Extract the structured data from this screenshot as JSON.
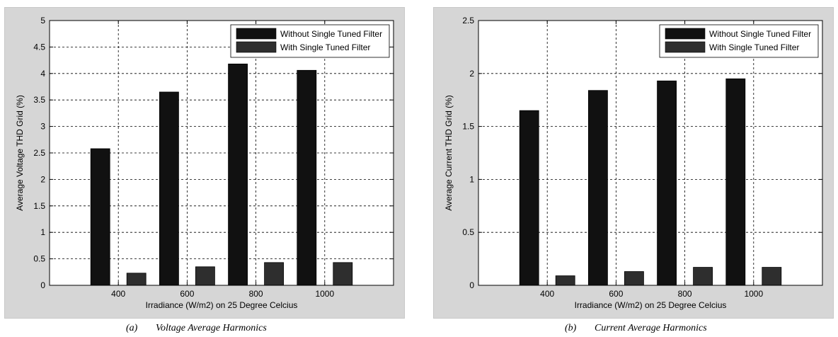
{
  "captions": [
    {
      "label": "(a)",
      "text": "Voltage Average Harmonics"
    },
    {
      "label": "(b)",
      "text": "Current Average Harmonics"
    }
  ],
  "colors": {
    "without": "#111111",
    "with": "#2e2e2e",
    "panel_bg": "#d6d6d6",
    "plot_bg": "#ffffff"
  },
  "chart_data": [
    {
      "type": "bar",
      "title": "",
      "xlabel": "Irradiance (W/m2) on 25 Degree Celcius",
      "ylabel": "Average Voltage THD Grid (%)",
      "categories": [
        "400",
        "600",
        "800",
        "1000"
      ],
      "ylim": [
        0,
        5
      ],
      "yticks": [
        0,
        0.5,
        1,
        1.5,
        2,
        2.5,
        3,
        3.5,
        4,
        4.5,
        5
      ],
      "ytick_labels": [
        "0",
        "0.5",
        "1",
        "1.5",
        "2",
        "2.5",
        "3",
        "3.5",
        "4",
        "4.5",
        "5"
      ],
      "grid": true,
      "legend": "top-right",
      "series": [
        {
          "name": "Without Single Tuned Filter",
          "values": [
            2.58,
            3.65,
            4.18,
            4.06
          ]
        },
        {
          "name": "With Single Tuned Filter",
          "values": [
            0.23,
            0.35,
            0.43,
            0.43
          ]
        }
      ]
    },
    {
      "type": "bar",
      "title": "",
      "xlabel": "Irradiance (W/m2) on 25 Degree Celcius",
      "ylabel": "Average Current THD Grid (%)",
      "categories": [
        "400",
        "600",
        "800",
        "1000"
      ],
      "ylim": [
        0,
        2.5
      ],
      "yticks": [
        0,
        0.5,
        1,
        1.5,
        2,
        2.5
      ],
      "ytick_labels": [
        "0",
        "0.5",
        "1",
        "1.5",
        "2",
        "2.5"
      ],
      "grid": true,
      "legend": "top-right",
      "series": [
        {
          "name": "Without Single Tuned Filter",
          "values": [
            1.65,
            1.84,
            1.93,
            1.95
          ]
        },
        {
          "name": "With Single Tuned Filter",
          "values": [
            0.09,
            0.13,
            0.17,
            0.17
          ]
        }
      ]
    }
  ]
}
